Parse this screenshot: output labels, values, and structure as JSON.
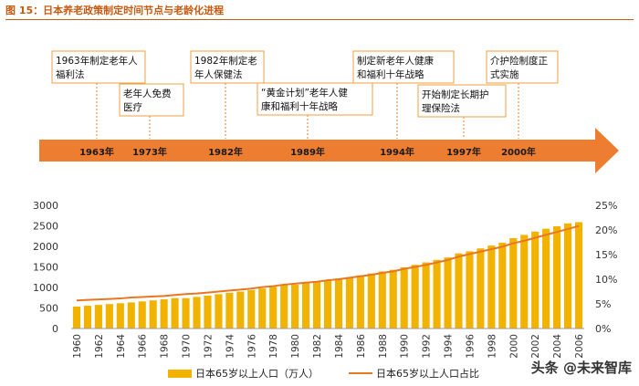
{
  "figure_title": "图 15：日本养老政策制定时间节点与老龄化进程",
  "timeline": {
    "years": [
      "1963年",
      "1973年",
      "1982年",
      "1989年",
      "1994年",
      "1997年",
      "2000年"
    ],
    "events": [
      {
        "year": "1963年",
        "lines": [
          "1963年制定老年人",
          "福利法"
        ]
      },
      {
        "year": "1973年",
        "lines": [
          "老年人免费",
          "医疗"
        ]
      },
      {
        "year": "1982年",
        "lines": [
          "1982年制定老",
          "年人保健法"
        ]
      },
      {
        "year": "1989年",
        "lines": [
          "“黄金计划”老年人健",
          "康和福利十年战略"
        ]
      },
      {
        "year": "1994年",
        "lines": [
          "制定新老年人健康",
          "和福利十年战略"
        ]
      },
      {
        "year": "1997年",
        "lines": [
          "开始制定长期护",
          "理保险法"
        ]
      },
      {
        "year": "2000年",
        "lines": [
          "介护险制度正",
          "式实施"
        ]
      }
    ]
  },
  "chart_data": {
    "type": "bar",
    "x": [
      1960,
      1961,
      1962,
      1963,
      1964,
      1965,
      1966,
      1967,
      1968,
      1969,
      1970,
      1971,
      1972,
      1973,
      1974,
      1975,
      1976,
      1977,
      1978,
      1979,
      1980,
      1981,
      1982,
      1983,
      1984,
      1985,
      1986,
      1987,
      1988,
      1989,
      1990,
      1991,
      1992,
      1993,
      1994,
      1995,
      1996,
      1997,
      1998,
      1999,
      2000,
      2001,
      2002,
      2003,
      2004,
      2005,
      2006
    ],
    "x_tick_labels": [
      "1960",
      "1962",
      "1964",
      "1966",
      "1968",
      "1970",
      "1972",
      "1974",
      "1976",
      "1978",
      "1980",
      "1982",
      "1984",
      "1986",
      "1988",
      "1990",
      "1992",
      "1994",
      "1996",
      "1998",
      "2000",
      "2002",
      "2004",
      "2006"
    ],
    "series": [
      {
        "name": "日本65岁以上人口（万人）",
        "type": "bar",
        "axis": "left",
        "color": "#f2b200",
        "values": [
          535,
          555,
          575,
          595,
          615,
          635,
          660,
          685,
          710,
          740,
          740,
          770,
          800,
          835,
          870,
          900,
          935,
          975,
          1015,
          1060,
          1065,
          1100,
          1140,
          1180,
          1215,
          1250,
          1295,
          1340,
          1390,
          1430,
          1490,
          1550,
          1610,
          1670,
          1730,
          1830,
          1880,
          1950,
          2020,
          2090,
          2200,
          2280,
          2360,
          2430,
          2490,
          2560,
          2590
        ]
      },
      {
        "name": "日本65岁以上人口占比",
        "type": "line",
        "axis": "right",
        "color": "#e87722",
        "values": [
          5.7,
          5.8,
          5.9,
          6.0,
          6.1,
          6.3,
          6.4,
          6.5,
          6.6,
          6.8,
          7.0,
          7.1,
          7.3,
          7.5,
          7.7,
          7.9,
          8.1,
          8.4,
          8.6,
          8.9,
          9.1,
          9.3,
          9.5,
          9.8,
          10.0,
          10.3,
          10.6,
          10.9,
          11.3,
          11.6,
          12.1,
          12.5,
          12.9,
          13.4,
          13.9,
          14.6,
          15.1,
          15.6,
          16.1,
          16.6,
          17.3,
          17.8,
          18.4,
          19.0,
          19.6,
          20.2,
          20.8
        ]
      }
    ],
    "y_left": {
      "ticks": [
        "0",
        "500",
        "1000",
        "1500",
        "2000",
        "2500",
        "3000"
      ],
      "range": [
        0,
        3000
      ]
    },
    "y_right": {
      "ticks": [
        "0%",
        "5%",
        "10%",
        "15%",
        "20%",
        "25%"
      ],
      "range": [
        0,
        25
      ]
    },
    "legend": [
      "日本65岁以上人口（万人）",
      "日本65岁以上人口占比"
    ],
    "legend_placement": "bottom"
  },
  "watermark": "头条 @未来智库"
}
